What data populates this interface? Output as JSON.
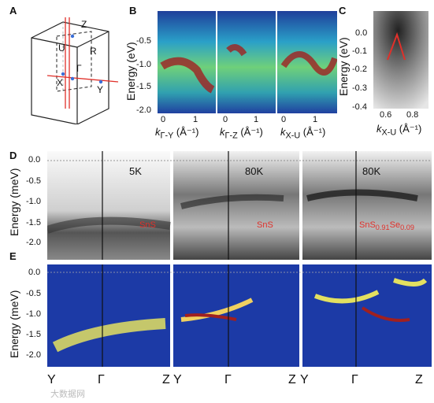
{
  "panels": {
    "A": {
      "label": "A",
      "points": [
        "Z",
        "U",
        "R",
        "Γ",
        "X",
        "Y"
      ]
    },
    "B": {
      "label": "B",
      "ylabel": "Energy (eV)",
      "yticks": [
        "-0.5",
        "-1.0",
        "-1.5",
        "-2.0"
      ],
      "xticks": [
        "0",
        "1",
        "0",
        "1",
        "0",
        "1"
      ],
      "xlabels": [
        "k",
        "Γ-Y",
        "(Å⁻¹)",
        "Γ-Z",
        "X-U"
      ]
    },
    "C": {
      "label": "C",
      "ylabel": "Energy (eV)",
      "yticks": [
        "0.0",
        "-0.1",
        "-0.2",
        "-0.3",
        "-0.4"
      ],
      "xticks": [
        "0.6",
        "0.8"
      ],
      "xlabel": "X-U",
      "xunit": "(Å⁻¹)"
    },
    "D": {
      "label": "D",
      "ylabel": "Energy (meV)",
      "yticks": [
        "0.0",
        "-0.5",
        "-1.0",
        "-1.5",
        "-2.0"
      ],
      "temps": [
        "5K",
        "80K",
        "80K"
      ],
      "samples": [
        "SnS",
        "SnS",
        "SnS",
        "0.91",
        "Se",
        "0.09"
      ]
    },
    "E": {
      "label": "E",
      "ylabel": "Energy (meV)",
      "yticks": [
        "0.0",
        "-0.5",
        "-1.0",
        "-1.5",
        "-2.0"
      ],
      "xticks": [
        "Y",
        "Γ",
        "Z",
        "Y",
        "Γ",
        "Z",
        "Y",
        "Γ",
        "Z"
      ]
    }
  },
  "watermark": "大数据网"
}
